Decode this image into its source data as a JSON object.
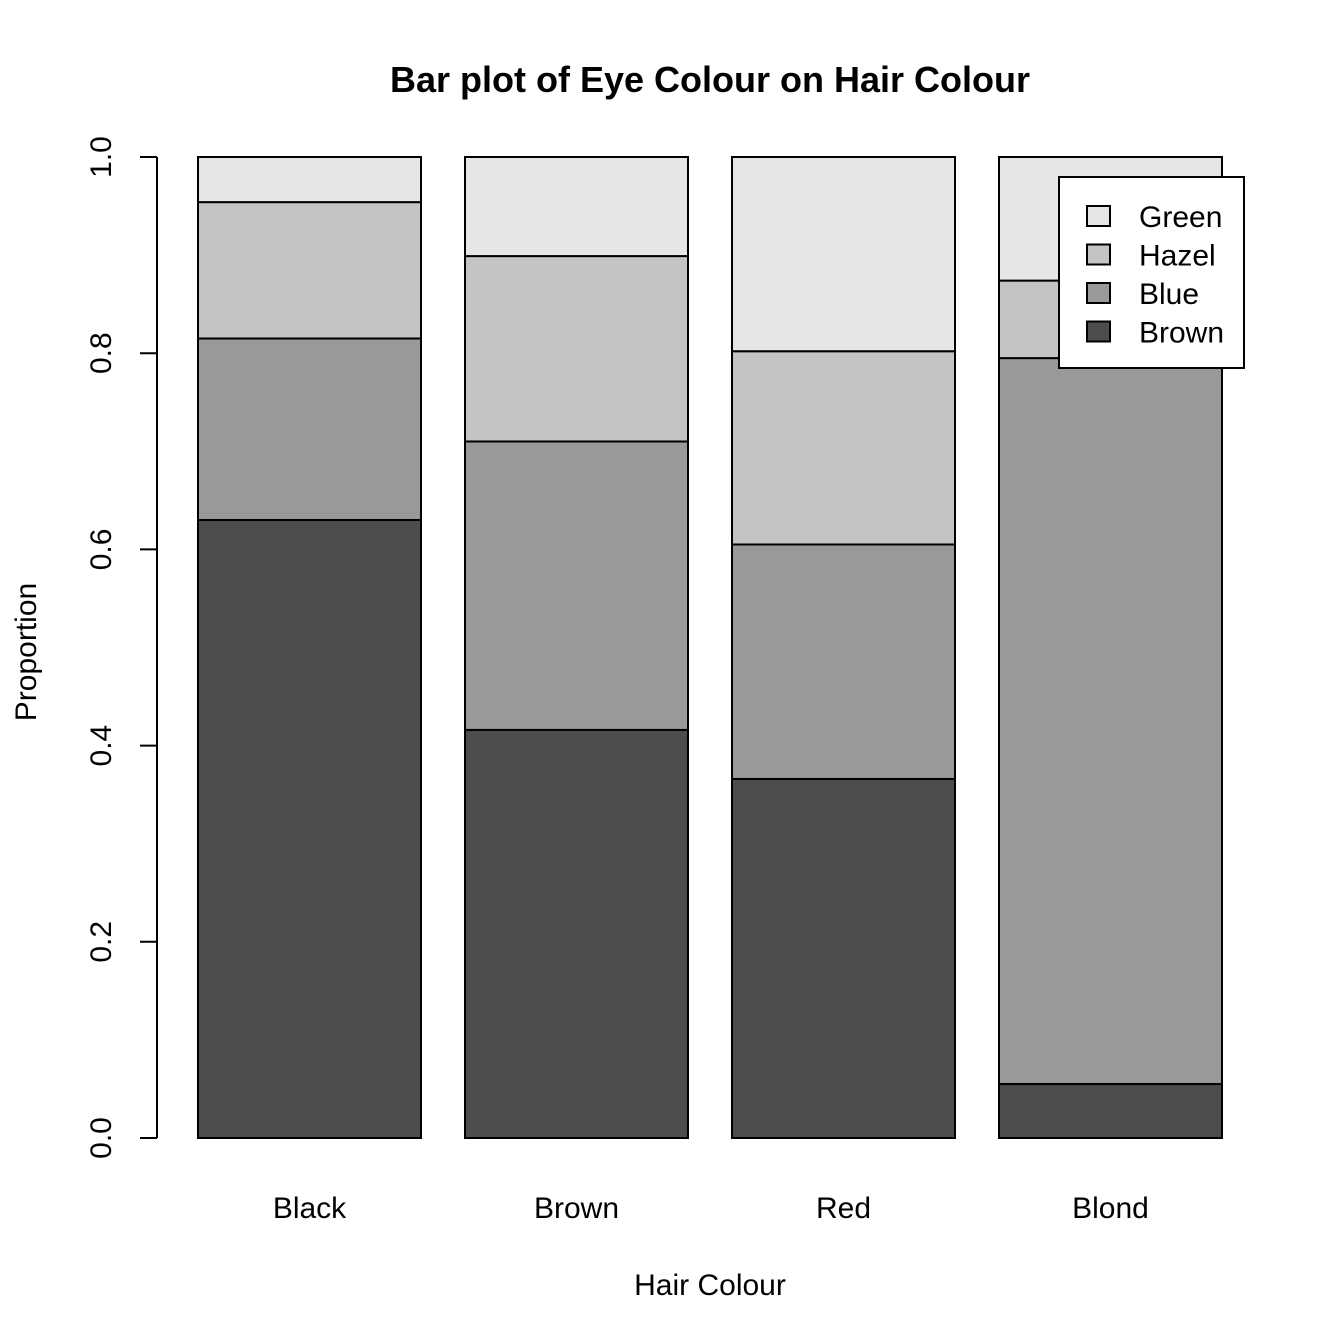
{
  "chart_data": {
    "type": "bar",
    "stacked": true,
    "title": "Bar plot of Eye Colour on Hair Colour",
    "xlabel": "Hair Colour",
    "ylabel": "Proportion",
    "ylim": [
      0,
      1
    ],
    "yticks": [
      "0.0",
      "0.2",
      "0.4",
      "0.6",
      "0.8",
      "1.0"
    ],
    "categories": [
      "Black",
      "Brown",
      "Red",
      "Blond"
    ],
    "series": [
      {
        "name": "Brown",
        "color": "#4d4d4d",
        "values": [
          0.63,
          0.416,
          0.366,
          0.055
        ]
      },
      {
        "name": "Blue",
        "color": "#999999",
        "values": [
          0.185,
          0.294,
          0.239,
          0.74
        ]
      },
      {
        "name": "Hazel",
        "color": "#c4c4c4",
        "values": [
          0.139,
          0.189,
          0.197,
          0.079
        ]
      },
      {
        "name": "Green",
        "color": "#e6e6e6",
        "values": [
          0.046,
          0.101,
          0.198,
          0.126
        ]
      }
    ],
    "legend": {
      "position": "top-right",
      "order": [
        "Green",
        "Hazel",
        "Blue",
        "Brown"
      ]
    },
    "grid": false
  }
}
